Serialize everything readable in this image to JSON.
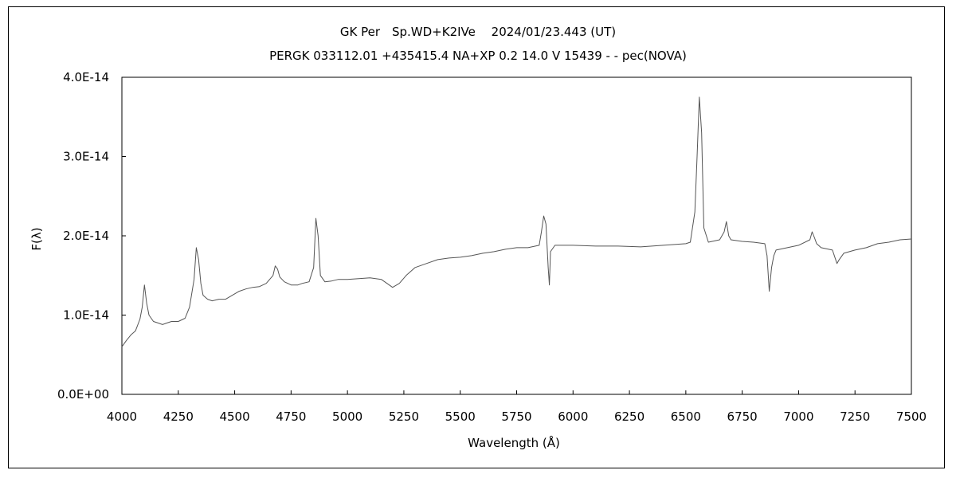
{
  "chart_data": {
    "type": "line",
    "title": "GK Per　Sp.WD+K2IVe　 2024/01/23.443 (UT)",
    "subtitle": "PERGK 033112.01 +435415.4 NA+XP 0.2 14.0 V 15439 - - pec(NOVA)",
    "xlabel": "Wavelength (Å)",
    "ylabel": "F(λ)",
    "xlim": [
      4000,
      7500
    ],
    "ylim": [
      0,
      4e-14
    ],
    "x_ticks": [
      "4000",
      "4250",
      "4500",
      "4750",
      "5000",
      "5250",
      "5500",
      "5750",
      "6000",
      "6250",
      "6500",
      "6750",
      "7000",
      "7250",
      "7500"
    ],
    "y_ticks": [
      "0.0E+00",
      "1.0E-14",
      "2.0E-14",
      "3.0E-14",
      "4.0E-14"
    ],
    "grid": false,
    "series": [
      {
        "color": "#555555",
        "x": [
          4000,
          4020,
          4040,
          4060,
          4080,
          4090,
          4100,
          4110,
          4120,
          4140,
          4160,
          4180,
          4200,
          4220,
          4250,
          4280,
          4300,
          4320,
          4330,
          4340,
          4350,
          4360,
          4380,
          4400,
          4430,
          4460,
          4490,
          4520,
          4550,
          4580,
          4610,
          4640,
          4670,
          4680,
          4690,
          4700,
          4720,
          4750,
          4780,
          4800,
          4830,
          4850,
          4860,
          4870,
          4880,
          4900,
          4930,
          4960,
          5000,
          5050,
          5100,
          5150,
          5200,
          5230,
          5260,
          5300,
          5350,
          5400,
          5450,
          5500,
          5550,
          5600,
          5650,
          5700,
          5750,
          5800,
          5850,
          5860,
          5870,
          5880,
          5890,
          5895,
          5900,
          5920,
          5950,
          6000,
          6100,
          6200,
          6300,
          6400,
          6500,
          6520,
          6540,
          6550,
          6560,
          6570,
          6580,
          6600,
          6650,
          6670,
          6680,
          6690,
          6700,
          6750,
          6800,
          6850,
          6860,
          6870,
          6880,
          6890,
          6900,
          6950,
          7000,
          7050,
          7060,
          7070,
          7080,
          7100,
          7150,
          7170,
          7180,
          7200,
          7250,
          7300,
          7350,
          7400,
          7450,
          7500
        ],
        "y": [
          6e-15,
          6.8e-15,
          7.5e-15,
          8e-15,
          9.5e-15,
          1.1e-14,
          1.38e-14,
          1.15e-14,
          1e-14,
          9.2e-15,
          9e-15,
          8.8e-15,
          9e-15,
          9.2e-15,
          9.2e-15,
          9.6e-15,
          1.1e-14,
          1.45e-14,
          1.85e-14,
          1.7e-14,
          1.4e-14,
          1.25e-14,
          1.2e-14,
          1.18e-14,
          1.2e-14,
          1.2e-14,
          1.25e-14,
          1.3e-14,
          1.33e-14,
          1.35e-14,
          1.36e-14,
          1.4e-14,
          1.5e-14,
          1.62e-14,
          1.58e-14,
          1.48e-14,
          1.42e-14,
          1.38e-14,
          1.38e-14,
          1.4e-14,
          1.42e-14,
          1.6e-14,
          2.22e-14,
          2e-14,
          1.5e-14,
          1.42e-14,
          1.43e-14,
          1.45e-14,
          1.45e-14,
          1.46e-14,
          1.47e-14,
          1.45e-14,
          1.35e-14,
          1.4e-14,
          1.5e-14,
          1.6e-14,
          1.65e-14,
          1.7e-14,
          1.72e-14,
          1.73e-14,
          1.75e-14,
          1.78e-14,
          1.8e-14,
          1.83e-14,
          1.85e-14,
          1.85e-14,
          1.88e-14,
          2.05e-14,
          2.25e-14,
          2.15e-14,
          1.6e-14,
          1.38e-14,
          1.8e-14,
          1.88e-14,
          1.88e-14,
          1.88e-14,
          1.87e-14,
          1.87e-14,
          1.86e-14,
          1.88e-14,
          1.9e-14,
          1.92e-14,
          2.3e-14,
          3e-14,
          3.75e-14,
          3.3e-14,
          2.1e-14,
          1.92e-14,
          1.95e-14,
          2.05e-14,
          2.18e-14,
          2e-14,
          1.95e-14,
          1.93e-14,
          1.92e-14,
          1.9e-14,
          1.75e-14,
          1.3e-14,
          1.6e-14,
          1.75e-14,
          1.82e-14,
          1.85e-14,
          1.88e-14,
          1.95e-14,
          2.05e-14,
          1.98e-14,
          1.9e-14,
          1.85e-14,
          1.82e-14,
          1.65e-14,
          1.7e-14,
          1.78e-14,
          1.82e-14,
          1.85e-14,
          1.9e-14,
          1.92e-14,
          1.95e-14,
          1.96e-14
        ]
      }
    ]
  }
}
